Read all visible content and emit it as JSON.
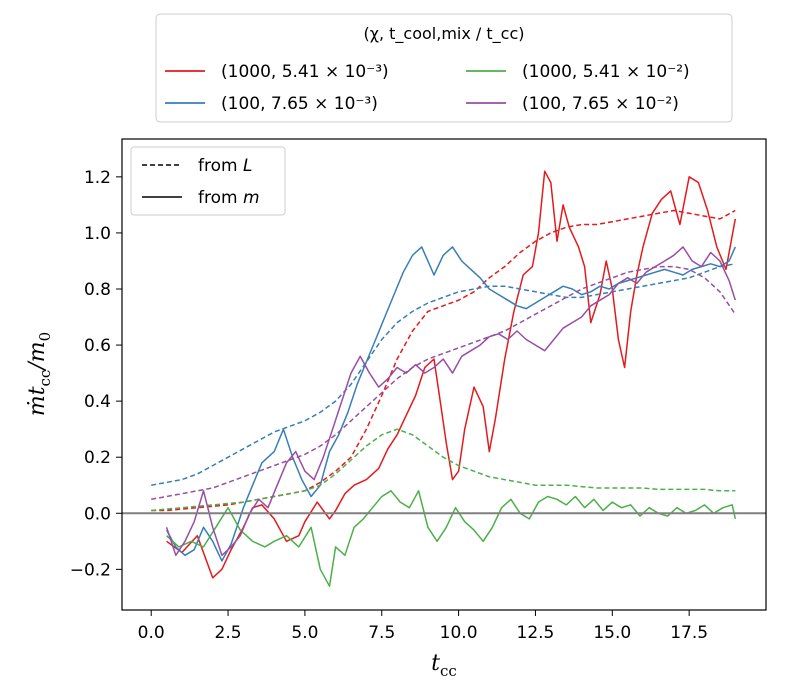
{
  "chart_data": {
    "type": "line",
    "xlabel": "t_cc",
    "ylabel": "ṁ t_cc / m_0",
    "xlim": [
      -0.95,
      20.0
    ],
    "ylim": [
      -0.345,
      1.335
    ],
    "xticks": [
      0.0,
      2.5,
      5.0,
      7.5,
      10.0,
      12.5,
      15.0,
      17.5
    ],
    "xtick_labels": [
      "0.0",
      "2.5",
      "5.0",
      "7.5",
      "10.0",
      "12.5",
      "15.0",
      "17.5"
    ],
    "yticks": [
      -0.2,
      0.0,
      0.2,
      0.4,
      0.6,
      0.8,
      1.0,
      1.2
    ],
    "ytick_labels": [
      "−0.2",
      "0.0",
      "0.2",
      "0.4",
      "0.6",
      "0.8",
      "1.0",
      "1.2"
    ],
    "hline": 0.0,
    "legend_top": {
      "title": "(χ, t_cool,mix / t_cc)",
      "placement": "above plot, centered",
      "entries": [
        {
          "label": "(1000, 5.41 × 10⁻³)",
          "color": "#e41a1c"
        },
        {
          "label": "(100, 7.65 × 10⁻³)",
          "color": "#377eb8"
        },
        {
          "label": "(1000, 5.41 × 10⁻²)",
          "color": "#4daf4a"
        },
        {
          "label": "(100, 7.65 × 10⁻²)",
          "color": "#984ea3"
        }
      ]
    },
    "legend_style": {
      "placement": "top-left",
      "entries": [
        {
          "label": "from L",
          "style": "dashed"
        },
        {
          "label": "from m",
          "style": "solid"
        }
      ]
    },
    "series": [
      {
        "name": "red_from_m",
        "color": "#e41a1c",
        "style": "solid",
        "x": [
          0.5,
          1.0,
          1.5,
          2.0,
          2.3,
          2.6,
          3.0,
          3.3,
          3.6,
          4.0,
          4.4,
          4.8,
          5.0,
          5.4,
          5.8,
          6.0,
          6.3,
          6.6,
          7.0,
          7.4,
          7.7,
          8.0,
          8.3,
          8.6,
          8.9,
          9.2,
          9.4,
          9.6,
          9.8,
          10.0,
          10.2,
          10.5,
          10.8,
          11.0,
          11.2,
          11.5,
          11.8,
          12.1,
          12.4,
          12.6,
          12.8,
          13.0,
          13.2,
          13.4,
          13.6,
          13.9,
          14.1,
          14.3,
          14.6,
          14.8,
          15.0,
          15.2,
          15.4,
          15.6,
          15.8,
          16.0,
          16.3,
          16.6,
          16.9,
          17.2,
          17.5,
          17.8,
          18.1,
          18.4,
          18.7,
          19.0
        ],
        "y": [
          -0.1,
          -0.14,
          -0.08,
          -0.23,
          -0.2,
          -0.13,
          -0.05,
          0.02,
          0.03,
          -0.02,
          -0.1,
          -0.08,
          -0.03,
          0.04,
          -0.02,
          0.01,
          0.07,
          0.1,
          0.12,
          0.16,
          0.23,
          0.28,
          0.35,
          0.42,
          0.52,
          0.55,
          0.4,
          0.25,
          0.12,
          0.15,
          0.3,
          0.45,
          0.38,
          0.22,
          0.34,
          0.55,
          0.72,
          0.85,
          0.88,
          1.0,
          1.22,
          1.18,
          0.97,
          1.1,
          1.02,
          0.95,
          0.88,
          0.68,
          0.78,
          0.9,
          0.8,
          0.62,
          0.52,
          0.72,
          0.85,
          0.95,
          1.07,
          1.12,
          1.15,
          1.03,
          1.2,
          1.18,
          1.08,
          0.95,
          0.87,
          1.05
        ]
      },
      {
        "name": "red_from_L",
        "color": "#e41a1c",
        "style": "dashed",
        "x": [
          0.0,
          0.5,
          1.0,
          1.5,
          2.0,
          2.5,
          3.0,
          3.5,
          4.0,
          4.5,
          5.0,
          5.5,
          6.0,
          6.5,
          7.0,
          7.5,
          8.0,
          8.5,
          9.0,
          9.5,
          10.0,
          10.5,
          11.0,
          11.5,
          12.0,
          12.5,
          13.0,
          13.5,
          14.0,
          14.5,
          15.0,
          15.5,
          16.0,
          16.5,
          17.0,
          17.5,
          18.0,
          18.5,
          19.0
        ],
        "y": [
          0.01,
          0.01,
          0.015,
          0.02,
          0.025,
          0.03,
          0.04,
          0.05,
          0.06,
          0.07,
          0.08,
          0.11,
          0.15,
          0.2,
          0.3,
          0.42,
          0.55,
          0.65,
          0.72,
          0.74,
          0.76,
          0.79,
          0.84,
          0.88,
          0.93,
          0.97,
          1.0,
          1.02,
          1.03,
          1.03,
          1.04,
          1.05,
          1.06,
          1.07,
          1.08,
          1.07,
          1.06,
          1.05,
          1.08
        ]
      },
      {
        "name": "blue_from_m",
        "color": "#377eb8",
        "style": "solid",
        "x": [
          0.5,
          0.8,
          1.1,
          1.4,
          1.7,
          2.0,
          2.3,
          2.6,
          3.0,
          3.3,
          3.6,
          4.0,
          4.3,
          4.6,
          4.9,
          5.2,
          5.5,
          5.8,
          6.1,
          6.4,
          6.7,
          7.0,
          7.3,
          7.6,
          7.9,
          8.2,
          8.5,
          8.8,
          9.0,
          9.2,
          9.5,
          9.8,
          10.1,
          10.4,
          10.7,
          11.0,
          11.3,
          11.6,
          11.9,
          12.2,
          12.5,
          12.8,
          13.1,
          13.4,
          13.7,
          14.0,
          14.3,
          14.6,
          14.9,
          15.2,
          15.5,
          15.8,
          16.1,
          16.4,
          16.7,
          17.0,
          17.3,
          17.6,
          17.9,
          18.2,
          18.5,
          18.8,
          19.0
        ],
        "y": [
          -0.06,
          -0.12,
          -0.15,
          -0.13,
          -0.05,
          -0.1,
          -0.17,
          -0.11,
          0.02,
          0.1,
          0.18,
          0.22,
          0.3,
          0.2,
          0.12,
          0.06,
          0.1,
          0.22,
          0.28,
          0.36,
          0.46,
          0.54,
          0.62,
          0.7,
          0.78,
          0.86,
          0.92,
          0.95,
          0.9,
          0.85,
          0.92,
          0.95,
          0.9,
          0.87,
          0.84,
          0.8,
          0.78,
          0.76,
          0.74,
          0.73,
          0.75,
          0.77,
          0.79,
          0.81,
          0.8,
          0.78,
          0.79,
          0.81,
          0.8,
          0.82,
          0.83,
          0.84,
          0.85,
          0.86,
          0.87,
          0.86,
          0.85,
          0.87,
          0.88,
          0.89,
          0.88,
          0.9,
          0.95
        ]
      },
      {
        "name": "blue_from_L",
        "color": "#377eb8",
        "style": "dashed",
        "x": [
          0.0,
          0.5,
          1.0,
          1.5,
          2.0,
          2.5,
          3.0,
          3.5,
          4.0,
          4.5,
          5.0,
          5.5,
          6.0,
          6.5,
          7.0,
          7.5,
          8.0,
          8.5,
          9.0,
          9.5,
          10.0,
          10.5,
          11.0,
          11.5,
          12.0,
          12.5,
          13.0,
          13.5,
          14.0,
          14.5,
          15.0,
          15.5,
          16.0,
          16.5,
          17.0,
          17.5,
          18.0,
          18.5,
          19.0
        ],
        "y": [
          0.1,
          0.11,
          0.12,
          0.14,
          0.17,
          0.2,
          0.23,
          0.26,
          0.29,
          0.31,
          0.33,
          0.36,
          0.4,
          0.46,
          0.54,
          0.62,
          0.68,
          0.72,
          0.75,
          0.77,
          0.79,
          0.8,
          0.81,
          0.81,
          0.8,
          0.79,
          0.78,
          0.77,
          0.77,
          0.78,
          0.79,
          0.8,
          0.81,
          0.82,
          0.83,
          0.84,
          0.86,
          0.88,
          0.89
        ]
      },
      {
        "name": "green_from_m",
        "color": "#4daf4a",
        "style": "solid",
        "x": [
          0.5,
          0.9,
          1.3,
          1.7,
          2.1,
          2.5,
          2.9,
          3.3,
          3.7,
          4.0,
          4.4,
          4.8,
          5.2,
          5.5,
          5.8,
          6.0,
          6.3,
          6.6,
          6.9,
          7.2,
          7.5,
          7.8,
          8.1,
          8.4,
          8.7,
          9.0,
          9.3,
          9.6,
          9.9,
          10.2,
          10.5,
          10.8,
          11.1,
          11.4,
          11.7,
          12.0,
          12.3,
          12.6,
          12.9,
          13.2,
          13.5,
          13.8,
          14.1,
          14.4,
          14.7,
          15.0,
          15.3,
          15.6,
          15.9,
          16.2,
          16.5,
          16.8,
          17.1,
          17.4,
          17.7,
          18.0,
          18.3,
          18.6,
          18.9,
          19.0
        ],
        "y": [
          -0.08,
          -0.12,
          -0.1,
          -0.12,
          -0.05,
          0.02,
          -0.06,
          -0.1,
          -0.12,
          -0.1,
          -0.08,
          -0.12,
          -0.05,
          -0.2,
          -0.26,
          -0.12,
          -0.15,
          -0.05,
          -0.02,
          0.02,
          0.06,
          0.08,
          0.04,
          0.02,
          0.08,
          -0.05,
          -0.1,
          -0.05,
          0.02,
          -0.03,
          -0.06,
          -0.1,
          -0.05,
          0.02,
          0.05,
          0.0,
          -0.02,
          0.04,
          0.06,
          0.05,
          0.03,
          0.06,
          0.02,
          0.05,
          0.01,
          0.04,
          0.02,
          0.03,
          -0.01,
          0.02,
          0.0,
          -0.01,
          0.02,
          0.0,
          0.01,
          0.03,
          0.0,
          0.02,
          0.03,
          -0.02
        ]
      },
      {
        "name": "green_from_L",
        "color": "#4daf4a",
        "style": "dashed",
        "x": [
          0.0,
          0.5,
          1.0,
          1.5,
          2.0,
          2.5,
          3.0,
          3.5,
          4.0,
          4.5,
          5.0,
          5.5,
          6.0,
          6.5,
          7.0,
          7.5,
          8.0,
          8.5,
          9.0,
          9.5,
          10.0,
          10.5,
          11.0,
          11.5,
          12.0,
          12.5,
          13.0,
          13.5,
          14.0,
          14.5,
          15.0,
          15.5,
          16.0,
          16.5,
          17.0,
          17.5,
          18.0,
          18.5,
          19.0
        ],
        "y": [
          0.01,
          0.015,
          0.02,
          0.025,
          0.03,
          0.035,
          0.04,
          0.05,
          0.06,
          0.07,
          0.08,
          0.1,
          0.14,
          0.19,
          0.24,
          0.28,
          0.3,
          0.28,
          0.24,
          0.2,
          0.17,
          0.15,
          0.13,
          0.12,
          0.11,
          0.1,
          0.1,
          0.1,
          0.095,
          0.09,
          0.09,
          0.09,
          0.09,
          0.085,
          0.085,
          0.085,
          0.085,
          0.08,
          0.08
        ]
      },
      {
        "name": "purple_from_m",
        "color": "#984ea3",
        "style": "solid",
        "x": [
          0.5,
          0.8,
          1.1,
          1.4,
          1.7,
          2.0,
          2.3,
          2.6,
          2.9,
          3.2,
          3.5,
          3.8,
          4.1,
          4.4,
          4.7,
          5.0,
          5.3,
          5.6,
          5.9,
          6.2,
          6.5,
          6.8,
          7.1,
          7.4,
          7.7,
          8.0,
          8.3,
          8.6,
          8.9,
          9.2,
          9.5,
          9.8,
          10.1,
          10.4,
          10.7,
          11.0,
          11.3,
          11.6,
          11.9,
          12.2,
          12.5,
          12.8,
          13.1,
          13.4,
          13.7,
          14.0,
          14.3,
          14.6,
          14.9,
          15.2,
          15.5,
          15.8,
          16.1,
          16.4,
          16.7,
          17.0,
          17.3,
          17.6,
          17.9,
          18.2,
          18.5,
          18.8,
          19.0
        ],
        "y": [
          -0.05,
          -0.15,
          -0.1,
          -0.03,
          0.08,
          -0.05,
          -0.15,
          -0.12,
          -0.08,
          0.0,
          0.05,
          0.02,
          0.1,
          0.18,
          0.22,
          0.15,
          0.12,
          0.2,
          0.3,
          0.4,
          0.5,
          0.56,
          0.5,
          0.45,
          0.48,
          0.52,
          0.5,
          0.53,
          0.5,
          0.52,
          0.55,
          0.5,
          0.56,
          0.58,
          0.6,
          0.63,
          0.64,
          0.62,
          0.65,
          0.62,
          0.6,
          0.58,
          0.62,
          0.66,
          0.68,
          0.7,
          0.74,
          0.76,
          0.78,
          0.82,
          0.84,
          0.82,
          0.86,
          0.88,
          0.9,
          0.92,
          0.95,
          0.9,
          0.88,
          0.93,
          0.9,
          0.83,
          0.76
        ]
      },
      {
        "name": "purple_from_L",
        "color": "#984ea3",
        "style": "dashed",
        "x": [
          0.0,
          0.5,
          1.0,
          1.5,
          2.0,
          2.5,
          3.0,
          3.5,
          4.0,
          4.5,
          5.0,
          5.5,
          6.0,
          6.5,
          7.0,
          7.5,
          8.0,
          8.5,
          9.0,
          9.5,
          10.0,
          10.5,
          11.0,
          11.5,
          12.0,
          12.5,
          13.0,
          13.5,
          14.0,
          14.5,
          15.0,
          15.5,
          16.0,
          16.5,
          17.0,
          17.5,
          18.0,
          18.5,
          19.0
        ],
        "y": [
          0.05,
          0.06,
          0.07,
          0.08,
          0.09,
          0.11,
          0.13,
          0.15,
          0.17,
          0.19,
          0.21,
          0.24,
          0.28,
          0.33,
          0.38,
          0.43,
          0.48,
          0.52,
          0.55,
          0.57,
          0.59,
          0.61,
          0.63,
          0.65,
          0.68,
          0.71,
          0.74,
          0.77,
          0.8,
          0.82,
          0.84,
          0.86,
          0.87,
          0.88,
          0.88,
          0.87,
          0.84,
          0.79,
          0.71
        ]
      }
    ]
  }
}
